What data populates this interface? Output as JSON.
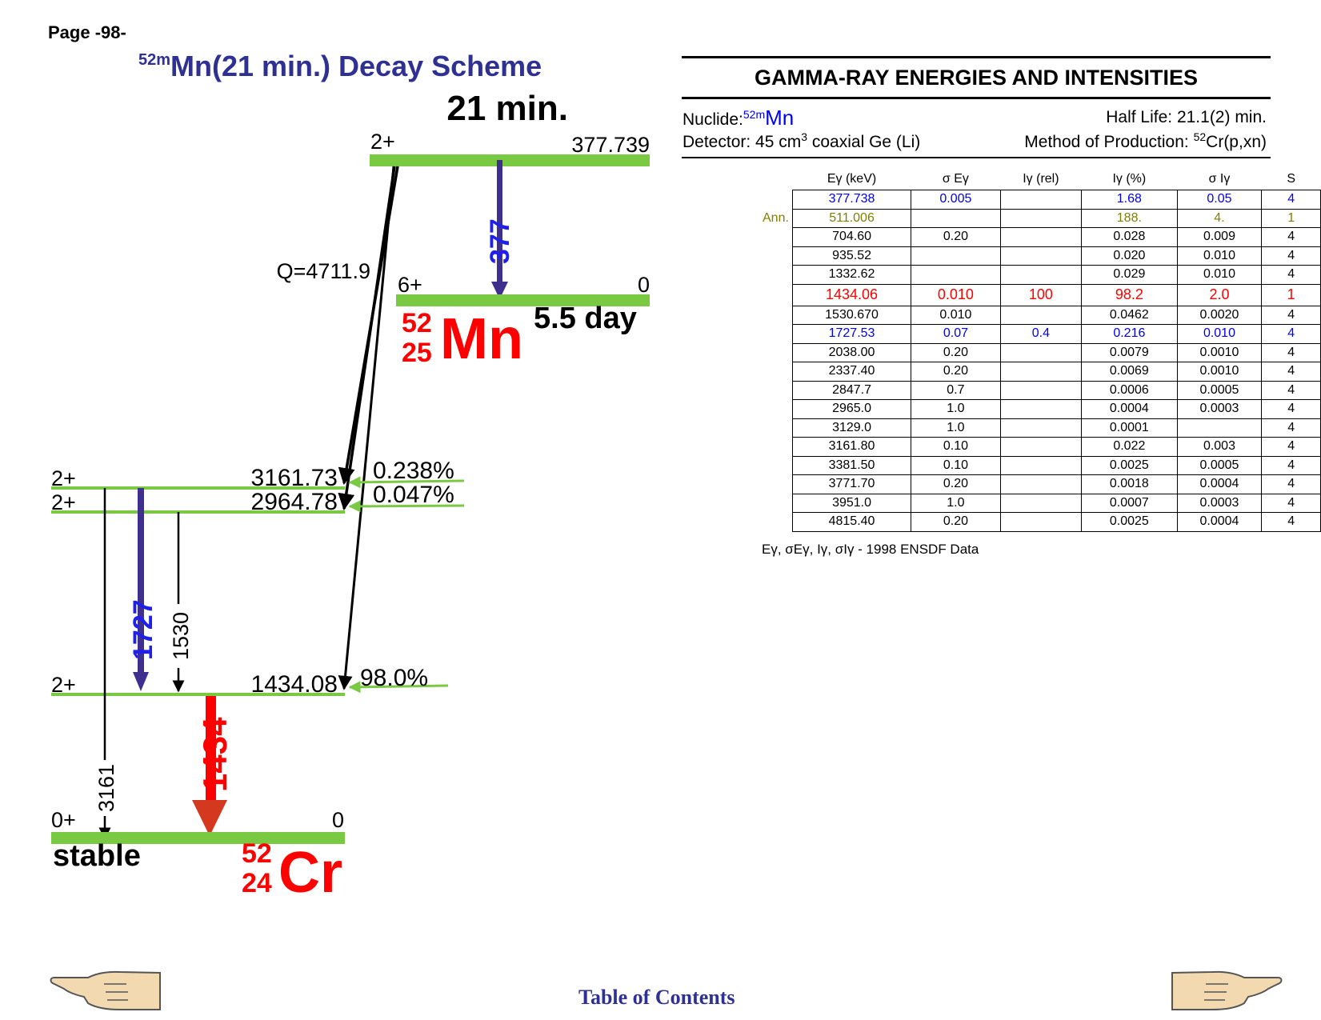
{
  "page_label": "Page -98-",
  "scheme_title": {
    "mass_meta": "52m",
    "text": "Mn(21 min.) Decay Scheme"
  },
  "parent": {
    "half_life": "21 min.",
    "spin": "2+",
    "energy": "377.739",
    "q_value": "Q=4711.9",
    "transition_377": "377"
  },
  "ground_mn": {
    "spin": "6+",
    "energy": "0",
    "half_life": "5.5 day",
    "mass": "52",
    "z": "25",
    "symbol": "Mn"
  },
  "daughter_levels": [
    {
      "spin": "2+",
      "energy": "3161.73",
      "branch": "0.238%"
    },
    {
      "spin": "2+",
      "energy": "2964.78",
      "branch": "0.047%"
    },
    {
      "spin": "2+",
      "energy": "1434.08",
      "branch": "98.0%"
    },
    {
      "spin": "0+",
      "energy": "0",
      "branch": ""
    }
  ],
  "gamma_labels": {
    "g1727": "1727",
    "g1530": "1530",
    "g1434": "1434",
    "g3161": "3161"
  },
  "daughter": {
    "stable": "stable",
    "mass": "52",
    "z": "24",
    "symbol": "Cr"
  },
  "colors": {
    "level_green": "#7ac943",
    "title_blue": "#2e3192",
    "red": "#ff0000",
    "purple": "#3f2f8f"
  },
  "gamma_table": {
    "title": "GAMMA-RAY ENERGIES AND INTENSITIES",
    "nuclide_label": "Nuclide:",
    "nuclide_mass": "52m",
    "nuclide_symbol": "Mn",
    "half_life": "Half Life: 21.1(2) min.",
    "detector_pre": "Detector: 45 cm",
    "detector_sup": "3",
    "detector_post": " coaxial Ge (Li)",
    "method_pre": "Method of Production: ",
    "method_sup": "52",
    "method_post": "Cr(p,xn)",
    "columns": [
      "Eγ (keV)",
      "σ Eγ",
      "Iγ (rel)",
      "Iγ (%)",
      "σ Iγ",
      "S"
    ],
    "rows": [
      {
        "style": "blue",
        "note": "",
        "cells": [
          "377.738",
          "0.005",
          "",
          "1.68",
          "0.05",
          "4"
        ]
      },
      {
        "style": "olive",
        "note": "Ann.",
        "cells": [
          "511.006",
          "",
          "",
          "188.",
          "4.",
          "1"
        ]
      },
      {
        "style": "",
        "note": "",
        "cells": [
          "704.60",
          "0.20",
          "",
          "0.028",
          "0.009",
          "4"
        ]
      },
      {
        "style": "",
        "note": "",
        "cells": [
          "935.52",
          "",
          "",
          "0.020",
          "0.010",
          "4"
        ]
      },
      {
        "style": "",
        "note": "",
        "cells": [
          "1332.62",
          "",
          "",
          "0.029",
          "0.010",
          "4"
        ]
      },
      {
        "style": "red",
        "note": "",
        "cells": [
          "1434.06",
          "0.010",
          "100",
          "98.2",
          "2.0",
          "1"
        ]
      },
      {
        "style": "",
        "note": "",
        "cells": [
          "1530.670",
          "0.010",
          "",
          "0.0462",
          "0.0020",
          "4"
        ]
      },
      {
        "style": "blue",
        "note": "",
        "cells": [
          "1727.53",
          "0.07",
          "0.4",
          "0.216",
          "0.010",
          "4"
        ]
      },
      {
        "style": "",
        "note": "",
        "cells": [
          "2038.00",
          "0.20",
          "",
          "0.0079",
          "0.0010",
          "4"
        ]
      },
      {
        "style": "",
        "note": "",
        "cells": [
          "2337.40",
          "0.20",
          "",
          "0.0069",
          "0.0010",
          "4"
        ]
      },
      {
        "style": "",
        "note": "",
        "cells": [
          "2847.7",
          "0.7",
          "",
          "0.0006",
          "0.0005",
          "4"
        ]
      },
      {
        "style": "",
        "note": "",
        "cells": [
          "2965.0",
          "1.0",
          "",
          "0.0004",
          "0.0003",
          "4"
        ]
      },
      {
        "style": "",
        "note": "",
        "cells": [
          "3129.0",
          "1.0",
          "",
          "0.0001",
          "",
          "4"
        ]
      },
      {
        "style": "",
        "note": "",
        "cells": [
          "3161.80",
          "0.10",
          "",
          "0.022",
          "0.003",
          "4"
        ]
      },
      {
        "style": "",
        "note": "",
        "cells": [
          "3381.50",
          "0.10",
          "",
          "0.0025",
          "0.0005",
          "4"
        ]
      },
      {
        "style": "",
        "note": "",
        "cells": [
          "3771.70",
          "0.20",
          "",
          "0.0018",
          "0.0004",
          "4"
        ]
      },
      {
        "style": "",
        "note": "",
        "cells": [
          "3951.0",
          "1.0",
          "",
          "0.0007",
          "0.0003",
          "4"
        ]
      },
      {
        "style": "",
        "note": "",
        "cells": [
          "4815.40",
          "0.20",
          "",
          "0.0025",
          "0.0004",
          "4"
        ]
      }
    ],
    "footnote": "Eγ, σEγ, Iγ, σIγ - 1998 ENSDF Data"
  },
  "toc_link": "Table of Contents",
  "icons": {
    "left": "pointing-hand-left-icon",
    "right": "pointing-hand-right-icon"
  }
}
